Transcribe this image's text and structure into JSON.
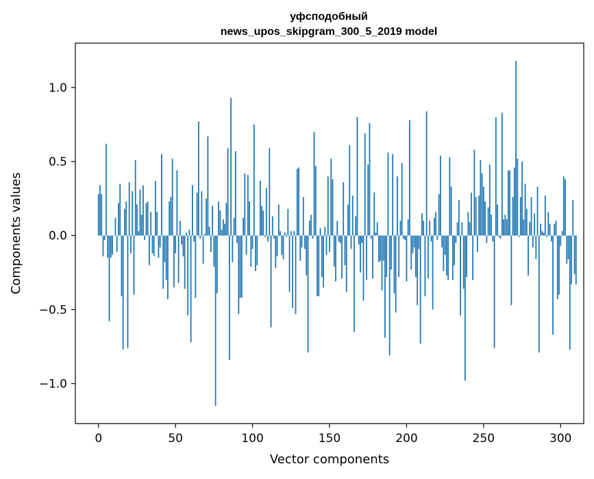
{
  "chart_data": {
    "type": "bar",
    "title_line1": "уфсподобный",
    "title_line2": "news_upos_skipgram_300_5_2019 model",
    "xlabel": "Vector components",
    "ylabel": "Components values",
    "xlim": [
      -15,
      315
    ],
    "ylim": [
      -1.27,
      1.3
    ],
    "x_ticks": [
      0,
      50,
      100,
      150,
      200,
      250,
      300
    ],
    "x_tick_labels": [
      "0",
      "50",
      "100",
      "150",
      "200",
      "250",
      "300"
    ],
    "y_ticks": [
      -1.0,
      -0.5,
      0.0,
      0.5,
      1.0
    ],
    "y_tick_labels": [
      "−1.0",
      "−0.5",
      "0.0",
      "0.5",
      "1.0"
    ],
    "grid": false,
    "bar_color": "#1f77b4",
    "values": [
      0.28,
      0.34,
      0.28,
      -0.14,
      -0.03,
      0.62,
      -0.15,
      -0.58,
      -0.15,
      -0.13,
      0.0,
      0.12,
      -0.11,
      0.22,
      0.35,
      -0.41,
      -0.77,
      0.18,
      0.23,
      -0.76,
      0.36,
      -0.12,
      0.3,
      -0.4,
      0.51,
      0.21,
      0.03,
      0.31,
      0.14,
      0.34,
      -0.03,
      0.22,
      0.23,
      -0.2,
      0.16,
      -0.12,
      -0.14,
      0.37,
      0.16,
      -0.15,
      -0.08,
      0.55,
      -0.36,
      -0.18,
      -0.3,
      -0.43,
      0.23,
      0.26,
      0.52,
      -0.35,
      -0.12,
      0.44,
      -0.32,
      0.1,
      -0.06,
      -0.14,
      -0.36,
      0.02,
      -0.54,
      0.04,
      -0.72,
      0.34,
      -0.04,
      -0.42,
      0.29,
      0.77,
      -0.02,
      0.3,
      -0.19,
      0.01,
      0.25,
      0.67,
      0.06,
      -0.11,
      0.2,
      -0.21,
      -1.15,
      -0.39,
      0.23,
      0.17,
      0.04,
      0.11,
      0.08,
      0.22,
      0.59,
      -0.84,
      0.93,
      -0.18,
      0.12,
      0.57,
      -0.05,
      -0.53,
      -0.42,
      -0.42,
      0.12,
      0.42,
      -0.13,
      0.41,
      0.23,
      -0.21,
      -0.09,
      0.75,
      -0.24,
      -0.2,
      0.0,
      0.37,
      0.2,
      0.17,
      -0.01,
      0.32,
      -0.04,
      0.59,
      -0.62,
      0.13,
      -0.02,
      -0.22,
      -0.14,
      0.21,
      0.03,
      -0.13,
      -0.16,
      0.02,
      -0.01,
      0.18,
      -0.38,
      0.03,
      -0.49,
      0.03,
      -0.53,
      0.45,
      0.46,
      -0.17,
      -0.08,
      0.26,
      -0.09,
      -0.27,
      -0.79,
      0.1,
      0.14,
      -0.02,
      0.7,
      0.47,
      -0.41,
      -0.41,
      0.05,
      -0.28,
      -0.35,
      0.06,
      -0.13,
      0.4,
      -0.11,
      0.52,
      0.38,
      -0.21,
      -0.31,
      0.1,
      -0.04,
      -0.05,
      -0.29,
      0.36,
      -0.2,
      -0.38,
      0.21,
      0.61,
      -0.09,
      0.27,
      -0.65,
      0.13,
      0.8,
      -0.06,
      -0.25,
      -0.05,
      -0.44,
      0.69,
      -0.3,
      0.48,
      0.76,
      -0.02,
      -0.29,
      0.29,
      0.02,
      0.09,
      -0.18,
      -0.17,
      -0.37,
      -0.17,
      -0.69,
      -0.28,
      0.56,
      -0.81,
      -0.23,
      0.55,
      -0.39,
      -0.52,
      0.4,
      -0.28,
      0.1,
      0.49,
      -0.02,
      -0.03,
      -0.31,
      0.11,
      0.78,
      -0.23,
      -0.12,
      -0.08,
      -0.28,
      -0.47,
      -0.09,
      -0.73,
      0.15,
      0.1,
      -0.41,
      0.84,
      -0.29,
      0.1,
      -0.04,
      -0.5,
      0.12,
      0.16,
      -0.03,
      0.28,
      0.54,
      -0.08,
      -0.24,
      -0.13,
      -0.27,
      -0.3,
      0.53,
      0.33,
      -0.3,
      -0.2,
      -0.05,
      0.09,
      0.24,
      -0.54,
      0.09,
      -0.36,
      -0.98,
      -0.28,
      0.16,
      0.09,
      0.29,
      -0.3,
      0.58,
      0.26,
      -0.11,
      0.27,
      0.51,
      0.42,
      0.33,
      0.23,
      -0.05,
      0.19,
      0.48,
      0.14,
      -0.04,
      -0.76,
      0.8,
      0.21,
      -0.01,
      -0.02,
      0.83,
      0.11,
      0.14,
      0.11,
      0.44,
      0.44,
      -0.47,
      0.26,
      0.46,
      1.18,
      0.52,
      -0.01,
      0.26,
      0.5,
      0.11,
      0.35,
      0.18,
      -0.27,
      0.09,
      0.26,
      -0.08,
      0.15,
      -0.16,
      0.33,
      -0.79,
      0.08,
      0.03,
      0.02,
      0.27,
      -0.01,
      0.16,
      0.08,
      -0.04,
      -0.67,
      0.08,
      0.1,
      -0.43,
      -0.4,
      -0.07,
      0.03,
      0.4,
      0.38,
      -0.19,
      -0.16,
      -0.77,
      -0.33,
      0.24,
      -0.26,
      -0.33
    ]
  }
}
